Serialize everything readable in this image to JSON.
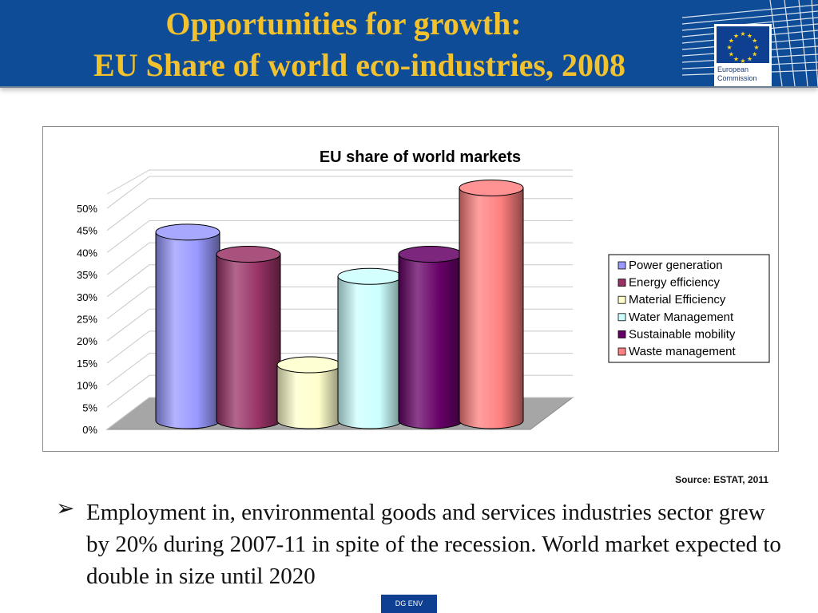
{
  "header": {
    "title_line1": "Opportunities for growth:",
    "title_line2": "EU Share of world eco-industries, 2008",
    "logo": {
      "line1": "European",
      "line2": "Commission"
    },
    "bg_color": "#0f4c97",
    "title_color": "#f2c12e"
  },
  "chart_data": {
    "type": "bar",
    "title": "EU share of world markets",
    "categories": [
      "Power generation",
      "Energy efficiency",
      "Material Efficiency",
      "Water Management",
      "Sustainable mobility",
      "Waste management"
    ],
    "values": [
      0.41,
      0.36,
      0.11,
      0.31,
      0.36,
      0.51
    ],
    "colors": [
      "#9999ff",
      "#993366",
      "#ffffcc",
      "#ccffff",
      "#660066",
      "#ff8080"
    ],
    "ylim": [
      0,
      0.5
    ],
    "yticks": [
      "0%",
      "5%",
      "10%",
      "15%",
      "20%",
      "25%",
      "30%",
      "35%",
      "40%",
      "45%",
      "50%"
    ],
    "legend_position": "right",
    "grid": true
  },
  "source": "Source: ESTAT, 2011",
  "bullet": {
    "symbol": "➢",
    "text": "Employment in, environmental goods and services industries sector grew by 20% during 2007-11 in spite of the recession. World market expected to double in size until 2020"
  },
  "footer": {
    "label": "DG ENV"
  }
}
